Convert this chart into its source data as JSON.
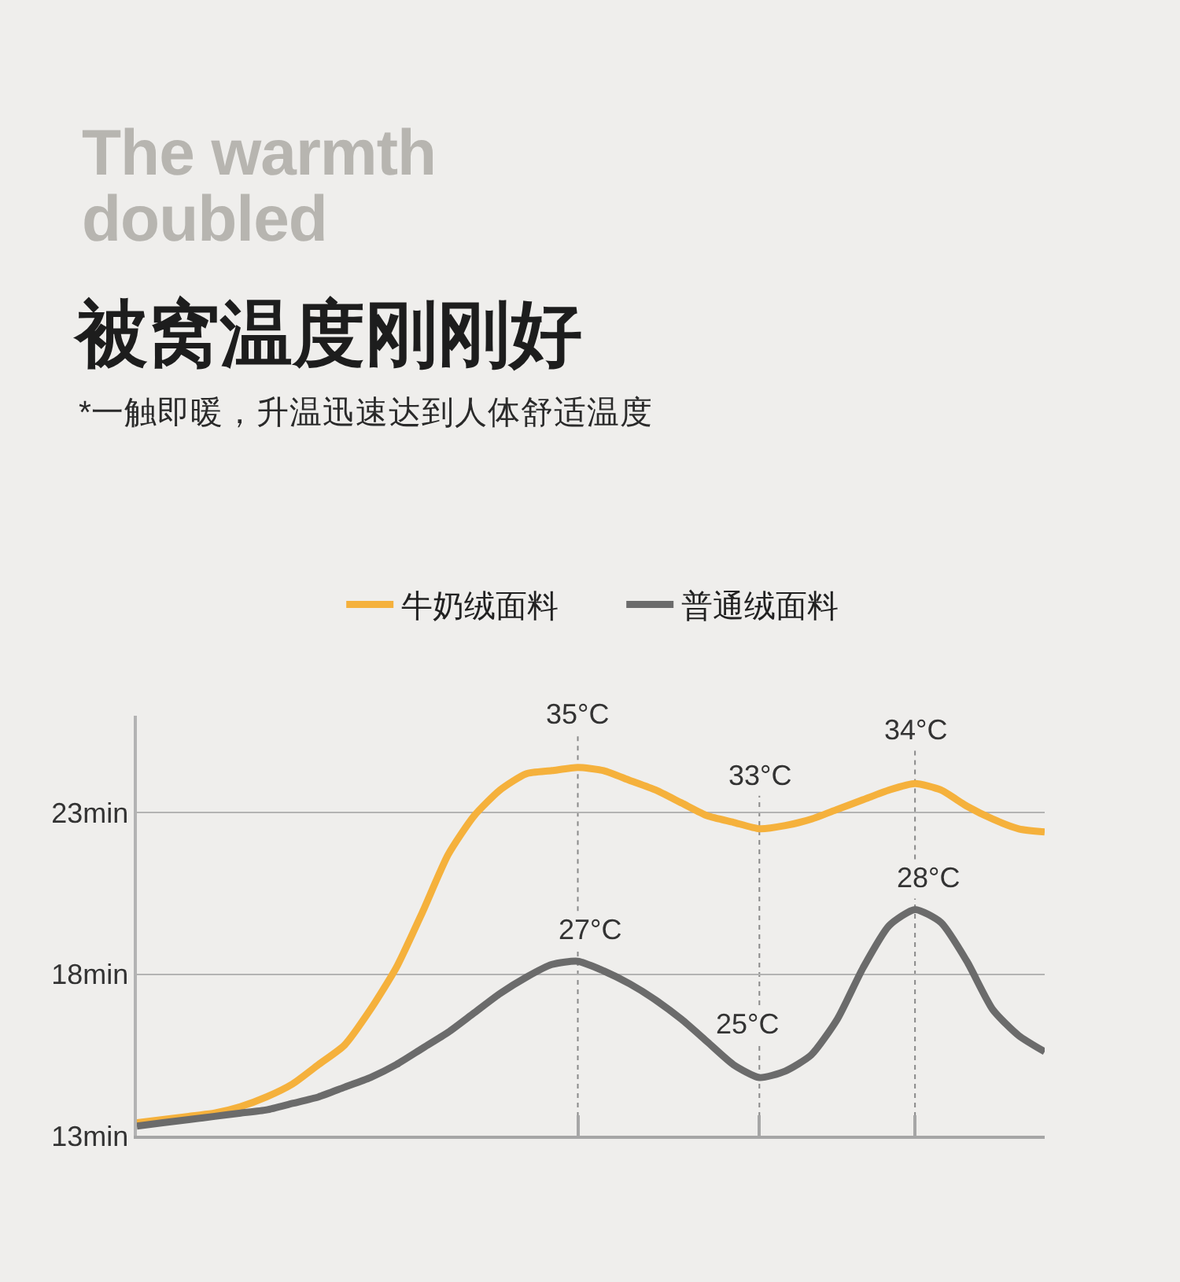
{
  "chart_data": {
    "type": "line",
    "title": "The warmth doubled",
    "subtitle": "被窝温度刚刚好",
    "annotations": [
      "*一触即暖，升温迅速达到人体舒适温度",
      {
        "text": "35°C",
        "y": 24.4
      },
      {
        "text": "33°C",
        "y": 22.5
      },
      {
        "text": "34°C",
        "y": 23.9
      },
      {
        "text": "27°C",
        "y": 18.4
      },
      {
        "text": "25°C",
        "y": 14.8
      },
      {
        "text": "28°C",
        "y": 20.0
      }
    ],
    "categories": [
      null,
      null,
      null,
      null,
      null,
      null,
      null,
      null,
      null,
      null,
      null,
      null,
      null,
      null,
      null,
      null,
      null,
      null,
      null,
      null,
      null,
      null,
      null,
      null,
      null,
      null,
      null,
      null,
      null,
      null,
      null,
      null,
      null,
      null,
      null,
      null
    ],
    "series": [
      {
        "name": "牛奶绒面料",
        "color": "#f5b13c",
        "values": [
          13.4,
          13.5,
          13.6,
          13.7,
          13.9,
          14.2,
          14.6,
          15.2,
          15.8,
          16.9,
          18.2,
          19.9,
          21.7,
          22.9,
          23.7,
          24.2,
          24.3,
          24.4,
          24.3,
          24.0,
          23.7,
          23.3,
          22.9,
          22.7,
          22.5,
          22.6,
          22.8,
          23.1,
          23.4,
          23.7,
          23.9,
          23.7,
          23.2,
          22.8,
          22.5,
          22.4
        ]
      },
      {
        "name": "普通绒面料",
        "color": "#6b6b6b",
        "values": [
          13.3,
          13.4,
          13.5,
          13.6,
          13.7,
          13.8,
          14.0,
          14.2,
          14.5,
          14.8,
          15.2,
          15.7,
          16.2,
          16.8,
          17.4,
          17.9,
          18.3,
          18.4,
          18.1,
          17.7,
          17.2,
          16.6,
          15.9,
          15.2,
          14.8,
          15.0,
          15.5,
          16.6,
          18.2,
          19.5,
          20.0,
          19.6,
          18.4,
          16.9,
          16.1,
          15.6
        ]
      }
    ],
    "ylim": [
      13,
      26
    ],
    "yticks": [
      {
        "value": 13,
        "label": "13min"
      },
      {
        "value": 18,
        "label": "18min"
      },
      {
        "value": 23,
        "label": "23min"
      }
    ],
    "grid": true,
    "legend": "top",
    "tick_labels": "y",
    "marker": "none",
    "line_style": "solid"
  }
}
